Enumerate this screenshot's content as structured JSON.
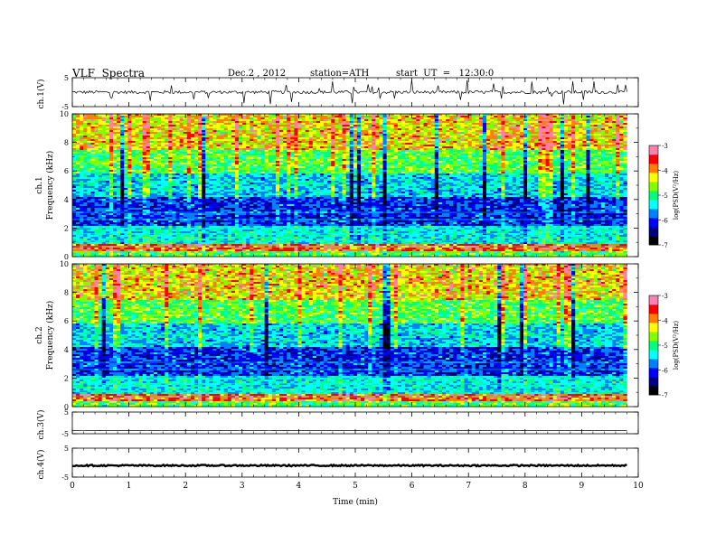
{
  "header": {
    "title": "VLF  Spectra",
    "date": "Dec.2 , 2012",
    "station": "station=ATH",
    "start": "start  UT  =   12:30:0"
  },
  "colors": {
    "colormap": [
      "#000000",
      "#00007f",
      "#0000ff",
      "#0080ff",
      "#00ffff",
      "#00ff80",
      "#80ff00",
      "#ffff00",
      "#ff8000",
      "#ff0000",
      "#ff80b0"
    ],
    "trace": "#000000"
  },
  "chart_data": [
    {
      "type": "line",
      "panel": "ch1",
      "ylabel": "ch.1(V)",
      "ylim": [
        -5,
        5
      ],
      "yticks": [
        "5",
        "-5"
      ],
      "x_range": [
        0,
        9.8
      ],
      "level": 0,
      "noise": 0.55
    },
    {
      "type": "heatmap",
      "panel": "ch1-spec",
      "ylabel_top": "ch.1",
      "ylabel": "Frequency  (kHz)",
      "ylim": [
        0,
        10
      ],
      "yticks": [
        "0",
        "2",
        "4",
        "6",
        "8",
        "10"
      ],
      "x_range": [
        0,
        9.8
      ],
      "colorbar": {
        "label": "log(PSD(V²/Hz)",
        "range": [
          -7,
          -3
        ],
        "ticks": [
          "-3",
          "-4",
          "-5",
          "-6",
          "-7"
        ]
      }
    },
    {
      "type": "heatmap",
      "panel": "ch2-spec",
      "ylabel_top": "ch.2",
      "ylabel": "Frequency  (kHz)",
      "ylim": [
        0,
        10
      ],
      "yticks": [
        "0",
        "2",
        "4",
        "6",
        "8",
        "10"
      ],
      "x_range": [
        0,
        9.8
      ],
      "colorbar": {
        "label": "log(PSD(V²/Hz)",
        "range": [
          -7,
          -3
        ],
        "ticks": [
          "-3",
          "-4",
          "-5",
          "-6",
          "-7"
        ]
      }
    },
    {
      "type": "line",
      "panel": "ch3",
      "ylabel": "ch.3(V)",
      "ylim": [
        -5,
        5
      ],
      "yticks": [
        "5",
        "-5"
      ],
      "x_range": [
        0,
        9.8
      ],
      "level": -3.5,
      "noise": 0.03
    },
    {
      "type": "line",
      "panel": "ch4",
      "ylabel": "ch.4(V)",
      "ylim": [
        -5,
        5
      ],
      "yticks": [
        "5",
        "-5"
      ],
      "x_range": [
        0,
        9.8
      ],
      "level": -1,
      "noise": 0.25
    }
  ],
  "x_axis": {
    "label": "Time  (min)",
    "range": [
      0,
      10
    ],
    "ticks": [
      "0",
      "1",
      "2",
      "3",
      "4",
      "5",
      "6",
      "7",
      "8",
      "9",
      "10"
    ]
  }
}
